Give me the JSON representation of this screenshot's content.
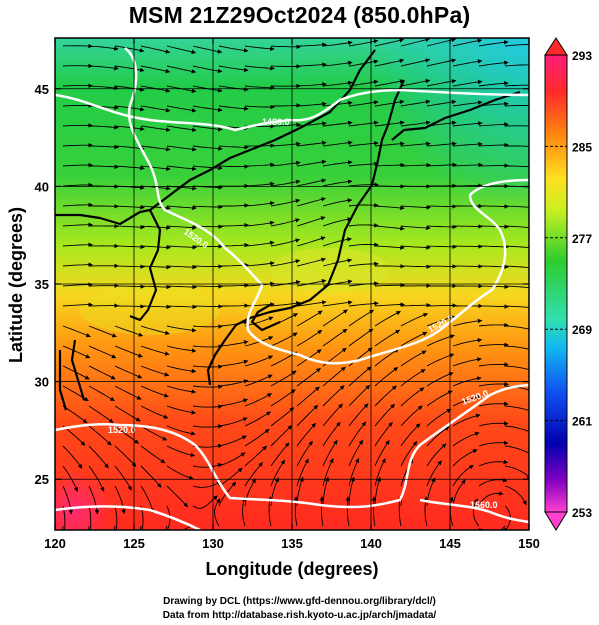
{
  "title": "MSM 21Z29Oct2024 (850.0hPa)",
  "credits": {
    "line1": "Drawing by DCL (https://www.gfd-dennou.org/library/dcl/)",
    "line2": "Data from http://database.rish.kyoto-u.ac.jp/arch/jmadata/"
  },
  "map": {
    "xlabel": "Longitude (degrees)",
    "ylabel": "Latitude  (degrees)",
    "lon_range": [
      120,
      150
    ],
    "lat_range": [
      22.4,
      47.6
    ],
    "x_ticks": [
      120,
      125,
      130,
      135,
      140,
      145,
      150
    ],
    "y_ticks": [
      25,
      30,
      35,
      40,
      45
    ],
    "grid": true,
    "contour_labels": [
      "1480.0",
      "1520.0",
      "1520.0",
      "1520.0",
      "1520.0",
      "1560.0"
    ],
    "colorbar": {
      "labels": [
        "293",
        "285",
        "277",
        "269",
        "261",
        "253"
      ],
      "range": [
        253,
        293
      ],
      "colors": [
        "#ff1c7a",
        "#ff2a2a",
        "#ff8c10",
        "#ffe020",
        "#c8f020",
        "#2ecc2e",
        "#30e0b0",
        "#10b8f0",
        "#1050f0",
        "#0000b0",
        "#8000c0",
        "#ff40d0"
      ]
    }
  }
}
